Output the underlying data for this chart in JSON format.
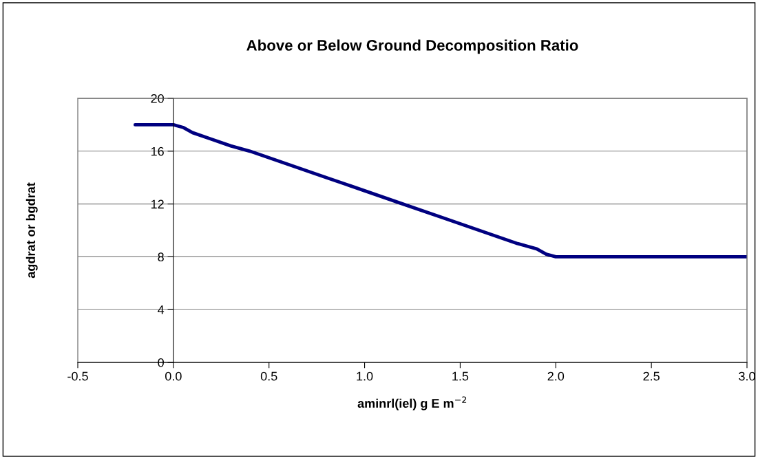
{
  "chart_data": {
    "type": "line",
    "title": "Above or Below Ground Decomposition Ratio",
    "xlabel": "aminrl(iel) g E m$^{−2}$",
    "ylabel": "agdrat or bgdrat",
    "x": [
      -0.2,
      0.0,
      0.05,
      0.1,
      0.2,
      0.3,
      0.4,
      0.6,
      0.8,
      0.9,
      1.0,
      1.2,
      1.4,
      1.6,
      1.8,
      1.9,
      1.95,
      2.0,
      3.0
    ],
    "series": [
      {
        "color": "#000080",
        "values": [
          18,
          18,
          17.8,
          17.4,
          16.9,
          16.4,
          16.0,
          15.0,
          14.0,
          13.5,
          13.0,
          12.0,
          11.0,
          10.0,
          9.0,
          8.6,
          8.2,
          8,
          8
        ]
      }
    ],
    "xlim": [
      -0.5,
      3.0
    ],
    "xticks": [
      {
        "value": -0.5,
        "label": "-0.5"
      },
      {
        "value": 0.0,
        "label": "0.0"
      },
      {
        "value": 0.5,
        "label": "0.5"
      },
      {
        "value": 1.0,
        "label": "1.0"
      },
      {
        "value": 1.5,
        "label": "1.5"
      },
      {
        "value": 2.0,
        "label": "2.0"
      },
      {
        "value": 2.5,
        "label": "2.5"
      },
      {
        "value": 3.0,
        "label": "3.0"
      }
    ],
    "ylim": [
      0,
      20
    ],
    "yticks": [
      0,
      4,
      8,
      12,
      16,
      20
    ],
    "grid": "y",
    "marker": "none",
    "line_style": "solid"
  }
}
